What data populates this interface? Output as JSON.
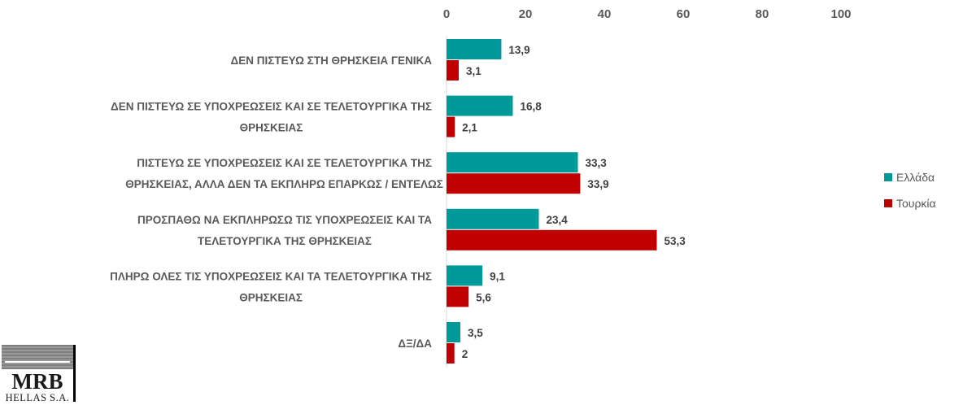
{
  "chart_data": {
    "type": "bar",
    "orientation": "horizontal",
    "categories": [
      [
        "ΔΕΝ ΠΙΣΤΕΥΩ ΣΤΗ ΘΡΗΣΚΕΙΑ ΓΕΝΙΚΑ"
      ],
      [
        "ΔΕΝ ΠΙΣΤΕΥΩ ΣΕ ΥΠΟΧΡΕΩΣΕΙΣ ΚΑΙ ΣΕ ΤΕΛΕΤΟΥΡΓΙΚΑ ΤΗΣ",
        "ΘΡΗΣΚΕΙΑΣ"
      ],
      [
        "ΠΙΣΤΕΥΩ ΣΕ ΥΠΟΧΡΕΩΣΕΙΣ ΚΑΙ ΣΕ ΤΕΛΕΤΟΥΡΓΙΚΑ ΤΗΣ",
        "ΘΡΗΣΚΕΙΑΣ, ΑΛΛΑ ΔΕΝ ΤΑ ΕΚΠΛΗΡΩ ΕΠΑΡΚΩΣ / ΕΝΤΕΛΩΣ"
      ],
      [
        "ΠΡΟΣΠΑΘΩ ΝΑ ΕΚΠΛΗΡΩΣΩ ΤΙΣ ΥΠΟΧΡΕΩΣΕΙΣ ΚΑΙ ΤΑ",
        "ΤΕΛΕΤΟΥΡΓΙΚΑ ΤΗΣ ΘΡΗΣΚΕΙΑΣ"
      ],
      [
        "ΠΛΗΡΩ ΟΛΕΣ ΤΙΣ ΥΠΟΧΡΕΩΣΕΙΣ ΚΑΙ ΤΑ ΤΕΛΕΤΟΥΡΓΙΚΑ ΤΗΣ",
        "ΘΡΗΣΚΕΙΑΣ"
      ],
      [
        "ΔΞ/ΔΑ"
      ]
    ],
    "series": [
      {
        "name": "Ελλάδα",
        "color": "#009999",
        "values": [
          13.9,
          16.8,
          33.3,
          23.4,
          9.1,
          3.5
        ],
        "labels": [
          "13,9",
          "16,8",
          "33,3",
          "23,4",
          "9,1",
          "3,5"
        ]
      },
      {
        "name": "Τουρκία",
        "color": "#C00000",
        "values": [
          3.1,
          2.1,
          33.9,
          53.3,
          5.6,
          2
        ],
        "labels": [
          "3,1",
          "2,1",
          "33,9",
          "53,3",
          "5,6",
          "2"
        ]
      }
    ],
    "xlim": [
      0,
      100
    ],
    "xticks": [
      "0",
      "20",
      "40",
      "60",
      "80",
      "100"
    ],
    "axis_position": "top",
    "grid": false,
    "legend": "right"
  },
  "logo": {
    "main": "MRB",
    "sub": "HELLAS S.A."
  }
}
